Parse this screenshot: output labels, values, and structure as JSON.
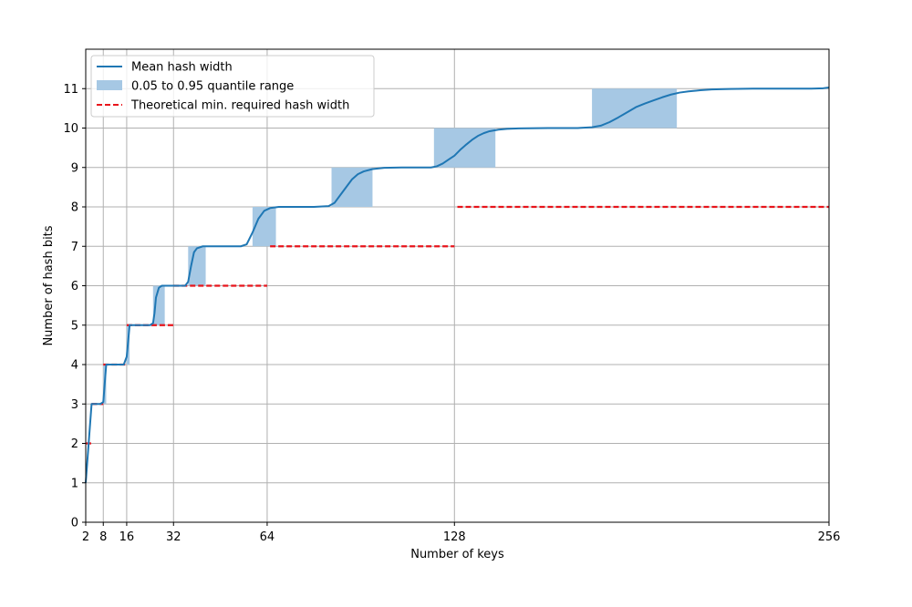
{
  "chart_data": {
    "type": "line",
    "xlabel": "Number of keys",
    "ylabel": "Number of hash bits",
    "xlim": [
      2,
      256
    ],
    "ylim": [
      0,
      12
    ],
    "xticks": [
      2,
      8,
      16,
      32,
      64,
      128,
      256
    ],
    "yticks": [
      0,
      1,
      2,
      3,
      4,
      5,
      6,
      7,
      8,
      9,
      10,
      11
    ],
    "grid": true,
    "legend_position": "top-left",
    "colors": {
      "mean": "#1f77b4",
      "band": "#a6c8e4",
      "theory": "#e8141b",
      "grid": "#b0b0b0"
    },
    "series": [
      {
        "name": "Mean hash width",
        "type": "line",
        "points": [
          [
            2,
            1.0
          ],
          [
            3,
            2.0
          ],
          [
            4,
            3.0
          ],
          [
            5,
            3.0
          ],
          [
            6,
            3.0
          ],
          [
            7,
            3.0
          ],
          [
            8,
            3.05
          ],
          [
            9,
            4.0
          ],
          [
            10,
            4.0
          ],
          [
            12,
            4.0
          ],
          [
            14,
            4.0
          ],
          [
            15,
            4.0
          ],
          [
            16,
            4.2
          ],
          [
            17,
            5.0
          ],
          [
            20,
            5.0
          ],
          [
            24,
            5.0
          ],
          [
            25,
            5.05
          ],
          [
            25.5,
            5.3
          ],
          [
            26,
            5.7
          ],
          [
            27,
            5.95
          ],
          [
            28,
            6.0
          ],
          [
            32,
            6.0
          ],
          [
            36,
            6.0
          ],
          [
            37,
            6.1
          ],
          [
            38,
            6.5
          ],
          [
            39,
            6.85
          ],
          [
            40,
            6.95
          ],
          [
            42,
            7.0
          ],
          [
            50,
            7.0
          ],
          [
            55,
            7.0
          ],
          [
            57,
            7.05
          ],
          [
            59,
            7.35
          ],
          [
            61,
            7.7
          ],
          [
            63,
            7.9
          ],
          [
            65,
            7.97
          ],
          [
            68,
            8.0
          ],
          [
            80,
            8.0
          ],
          [
            85,
            8.02
          ],
          [
            87,
            8.1
          ],
          [
            89,
            8.3
          ],
          [
            91,
            8.5
          ],
          [
            93,
            8.7
          ],
          [
            95,
            8.83
          ],
          [
            97,
            8.9
          ],
          [
            100,
            8.96
          ],
          [
            104,
            8.99
          ],
          [
            110,
            9.0
          ],
          [
            120,
            9.0
          ],
          [
            122,
            9.03
          ],
          [
            124,
            9.1
          ],
          [
            126,
            9.2
          ],
          [
            128,
            9.3
          ],
          [
            130,
            9.45
          ],
          [
            132,
            9.58
          ],
          [
            134,
            9.7
          ],
          [
            136,
            9.8
          ],
          [
            138,
            9.87
          ],
          [
            140,
            9.92
          ],
          [
            143,
            9.96
          ],
          [
            146,
            9.98
          ],
          [
            150,
            9.99
          ],
          [
            160,
            10.0
          ],
          [
            170,
            10.0
          ],
          [
            175,
            10.02
          ],
          [
            178,
            10.06
          ],
          [
            181,
            10.15
          ],
          [
            184,
            10.27
          ],
          [
            187,
            10.4
          ],
          [
            190,
            10.53
          ],
          [
            193,
            10.62
          ],
          [
            196,
            10.7
          ],
          [
            199,
            10.78
          ],
          [
            202,
            10.85
          ],
          [
            205,
            10.9
          ],
          [
            208,
            10.93
          ],
          [
            212,
            10.96
          ],
          [
            216,
            10.98
          ],
          [
            222,
            10.99
          ],
          [
            230,
            11.0
          ],
          [
            240,
            11.0
          ],
          [
            250,
            11.0
          ],
          [
            254,
            11.01
          ],
          [
            256,
            11.03
          ]
        ]
      },
      {
        "name": "0.05 to 0.95 quantile range",
        "type": "band",
        "bands": [
          {
            "y0": 3,
            "y1": 4,
            "x0": 8,
            "x1": 9
          },
          {
            "y0": 4,
            "y1": 5,
            "x0": 16,
            "x1": 17
          },
          {
            "y0": 5,
            "y1": 6,
            "x0": 25,
            "x1": 29
          },
          {
            "y0": 6,
            "y1": 7,
            "x0": 37,
            "x1": 43
          },
          {
            "y0": 7,
            "y1": 8,
            "x0": 59,
            "x1": 67
          },
          {
            "y0": 8,
            "y1": 9,
            "x0": 86,
            "x1": 100
          },
          {
            "y0": 9,
            "y1": 10,
            "x0": 121,
            "x1": 142
          },
          {
            "y0": 10,
            "y1": 11,
            "x0": 175,
            "x1": 204
          }
        ]
      },
      {
        "name": "Theoretical min. required hash width",
        "type": "step",
        "segments": [
          {
            "x0": 2,
            "x1": 4,
            "y": 2
          },
          {
            "x0": 4,
            "x1": 8,
            "y": 3
          },
          {
            "x0": 8,
            "x1": 16,
            "y": 4
          },
          {
            "x0": 16,
            "x1": 32,
            "y": 5
          },
          {
            "x0": 32,
            "x1": 64,
            "y": 6
          },
          {
            "x0": 65,
            "x1": 128,
            "y": 7
          },
          {
            "x0": 129,
            "x1": 256,
            "y": 8
          }
        ]
      }
    ]
  }
}
